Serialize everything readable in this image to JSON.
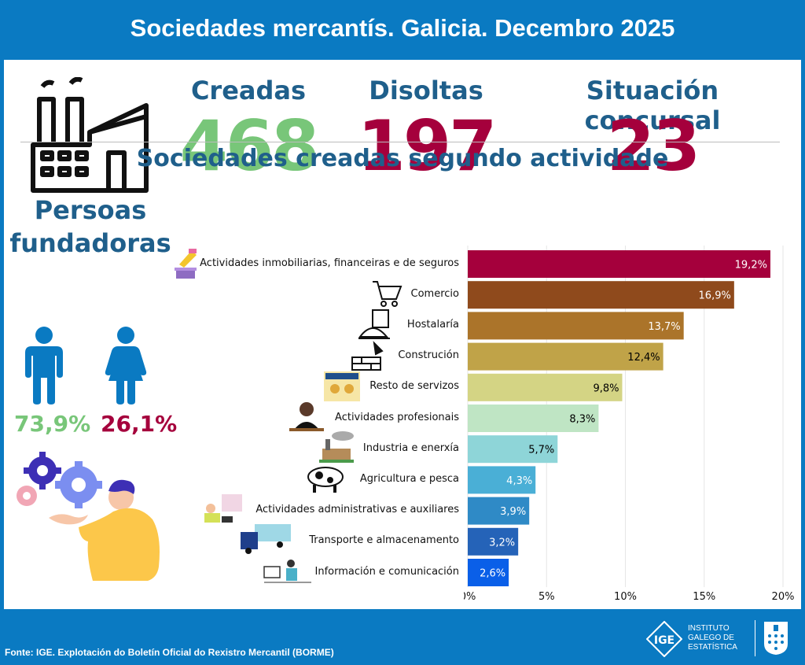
{
  "header": {
    "title": "Sociedades mercantís. Galicia. Decembro 2025"
  },
  "kpis": [
    {
      "label": "Creadas",
      "value": "468",
      "color": "#78c679"
    },
    {
      "label": "Disoltas",
      "value": "197",
      "color": "#a5003c"
    },
    {
      "label": "Situación concursal",
      "value": "23",
      "color": "#a5003c"
    }
  ],
  "section": {
    "title": "Sociedades creadas segundo actividade"
  },
  "founders": {
    "title_line1": "Persoas",
    "title_line2": "fundadoras",
    "male_pct": "73,9%",
    "female_pct": "26,1%",
    "male_color": "#78c679",
    "female_color": "#a5003c",
    "icon_color": "#0a7ac2"
  },
  "chart_data": {
    "type": "bar",
    "orientation": "horizontal",
    "categories": [
      "Actividades inmobiliarias, financeiras e de seguros",
      "Comercio",
      "Hostalaría",
      "Construción",
      "Resto de servizos",
      "Actividades profesionais",
      "Industria e enerxía",
      "Agricultura e pesca",
      "Actividades administrativas e auxiliares",
      "Transporte e almacenamento",
      "Información e comunicación"
    ],
    "values": [
      19.2,
      16.9,
      13.7,
      12.4,
      9.8,
      8.3,
      5.7,
      4.3,
      3.9,
      3.2,
      2.6
    ],
    "value_labels": [
      "19,2%",
      "16,9%",
      "13,7%",
      "12,4%",
      "9,8%",
      "8,3%",
      "5,7%",
      "4,3%",
      "3,9%",
      "3,2%",
      "2,6%"
    ],
    "colors": [
      "#a5003c",
      "#8f4a1c",
      "#ab742a",
      "#c0a348",
      "#d4d484",
      "#bfe5c4",
      "#8ed5d8",
      "#4aafd6",
      "#2f8ac6",
      "#2563b8",
      "#0a5fe8"
    ],
    "label_colors": [
      "#ffffff",
      "#ffffff",
      "#ffffff",
      "#000000",
      "#000000",
      "#000000",
      "#000000",
      "#ffffff",
      "#ffffff",
      "#ffffff",
      "#ffffff"
    ],
    "category_icons": [
      "money-icon",
      "cart-icon",
      "cloche-icon",
      "bricks-icon",
      "services-icon",
      "lawyer-icon",
      "factory-icon",
      "cow-icon",
      "office-worker-icon",
      "truck-icon",
      "computer-icon"
    ],
    "xlim": [
      0,
      20
    ],
    "xticks": [
      "0%",
      "5%",
      "10%",
      "15%",
      "20%"
    ],
    "grid": true
  },
  "footer": {
    "source": "Fonte: IGE. Explotación do Boletín Oficial do Rexistro Mercantil (BORME)",
    "logo_line1": "INSTITUTO",
    "logo_line2": "GALEGO DE",
    "logo_line3": "ESTATÍSTICA",
    "logo_mark": "IGE"
  }
}
